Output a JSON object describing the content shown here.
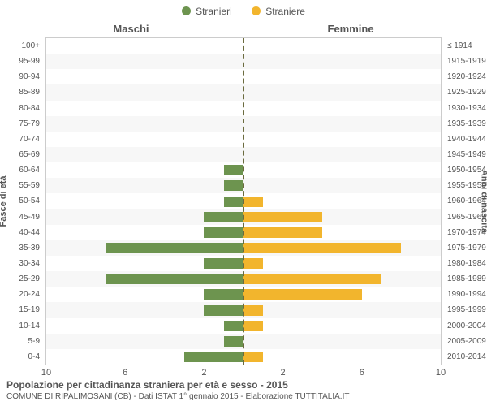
{
  "chart": {
    "type": "population-pyramid",
    "background_color": "#ffffff",
    "grid_alt_color": "#f7f7f7",
    "border_color": "#cccccc",
    "centerline_color": "#6b6b3f",
    "legend": {
      "male": {
        "label": "Stranieri",
        "color": "#6d944f"
      },
      "female": {
        "label": "Straniere",
        "color": "#f2b52d"
      }
    },
    "headers": {
      "male": "Maschi",
      "female": "Femmine"
    },
    "axis_titles": {
      "left": "Fasce di età",
      "right": "Anni di nascita"
    },
    "xlim": 10,
    "xticks": [
      10,
      6,
      2,
      2,
      6,
      10
    ],
    "age_bands": [
      "0-4",
      "5-9",
      "10-14",
      "15-19",
      "20-24",
      "25-29",
      "30-34",
      "35-39",
      "40-44",
      "45-49",
      "50-54",
      "55-59",
      "60-64",
      "65-69",
      "70-74",
      "75-79",
      "80-84",
      "85-89",
      "90-94",
      "95-99",
      "100+"
    ],
    "birth_years": [
      "2010-2014",
      "2005-2009",
      "2000-2004",
      "1995-1999",
      "1990-1994",
      "1985-1989",
      "1980-1984",
      "1975-1979",
      "1970-1974",
      "1965-1969",
      "1960-1964",
      "1955-1959",
      "1950-1954",
      "1945-1949",
      "1940-1944",
      "1935-1939",
      "1930-1934",
      "1925-1929",
      "1920-1924",
      "1915-1919",
      "≤ 1914"
    ],
    "male": [
      3,
      1,
      1,
      2,
      2,
      7,
      2,
      7,
      2,
      2,
      1,
      1,
      1,
      0,
      0,
      0,
      0,
      0,
      0,
      0,
      0
    ],
    "female": [
      1,
      0,
      1,
      1,
      6,
      7,
      1,
      8,
      4,
      4,
      1,
      0,
      0,
      0,
      0,
      0,
      0,
      0,
      0,
      0,
      0
    ],
    "label_fontsize": 10,
    "tick_fontsize": 11
  },
  "footer": {
    "line1": "Popolazione per cittadinanza straniera per età e sesso - 2015",
    "line2": "COMUNE DI RIPALIMOSANI (CB) - Dati ISTAT 1° gennaio 2015 - Elaborazione TUTTITALIA.IT"
  }
}
